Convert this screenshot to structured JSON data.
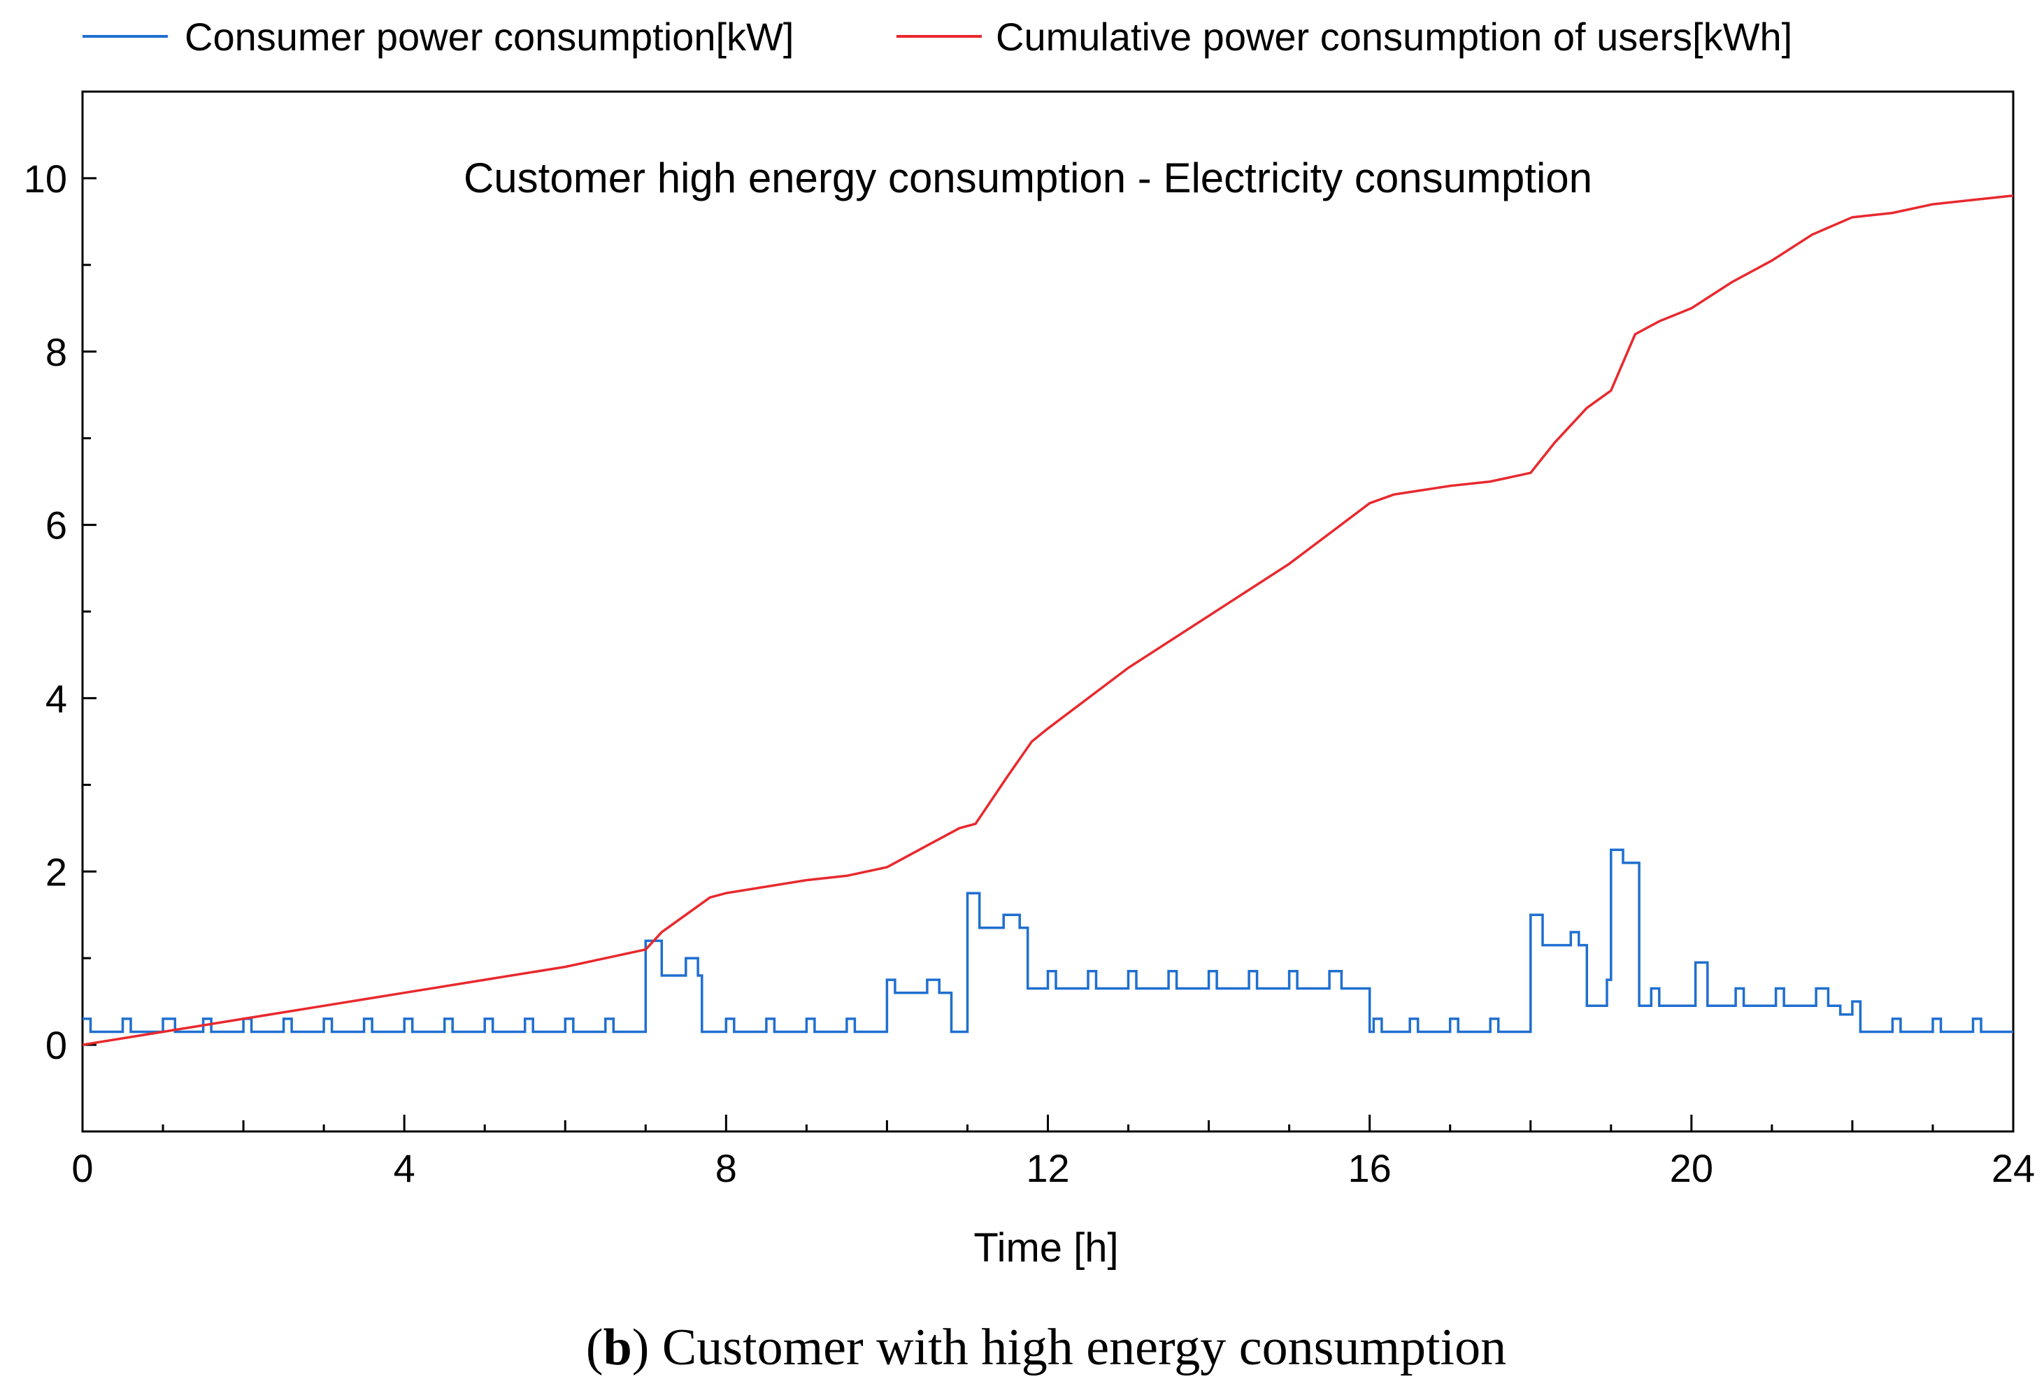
{
  "chart_data": {
    "type": "line",
    "title": "Customer high energy consumption - Electricity consumption",
    "xlabel": "Time [h]",
    "ylabel": "",
    "xlim": [
      0,
      24
    ],
    "ylim": [
      -1,
      11
    ],
    "x_ticks": [
      0,
      4,
      8,
      12,
      16,
      20,
      24
    ],
    "y_ticks": [
      0,
      2,
      4,
      6,
      8,
      10
    ],
    "x_minor_step": 1,
    "y_minor_step": 1,
    "grid": false,
    "legend_position": "top",
    "series": [
      {
        "name": "Consumer power consumption[kW]",
        "color": "#1f6fd0",
        "step": true,
        "points": [
          [
            0,
            0.3
          ],
          [
            0.1,
            0.3
          ],
          [
            0.1,
            0.15
          ],
          [
            0.5,
            0.15
          ],
          [
            0.5,
            0.3
          ],
          [
            0.6,
            0.3
          ],
          [
            0.6,
            0.15
          ],
          [
            1,
            0.15
          ],
          [
            1,
            0.3
          ],
          [
            1.15,
            0.3
          ],
          [
            1.15,
            0.15
          ],
          [
            1.5,
            0.15
          ],
          [
            1.5,
            0.3
          ],
          [
            1.6,
            0.3
          ],
          [
            1.6,
            0.15
          ],
          [
            2,
            0.15
          ],
          [
            2,
            0.3
          ],
          [
            2.1,
            0.3
          ],
          [
            2.1,
            0.15
          ],
          [
            2.5,
            0.15
          ],
          [
            2.5,
            0.3
          ],
          [
            2.6,
            0.3
          ],
          [
            2.6,
            0.15
          ],
          [
            3,
            0.15
          ],
          [
            3,
            0.3
          ],
          [
            3.1,
            0.3
          ],
          [
            3.1,
            0.15
          ],
          [
            3.5,
            0.15
          ],
          [
            3.5,
            0.3
          ],
          [
            3.6,
            0.3
          ],
          [
            3.6,
            0.15
          ],
          [
            4,
            0.15
          ],
          [
            4,
            0.3
          ],
          [
            4.1,
            0.3
          ],
          [
            4.1,
            0.15
          ],
          [
            4.5,
            0.15
          ],
          [
            4.5,
            0.3
          ],
          [
            4.6,
            0.3
          ],
          [
            4.6,
            0.15
          ],
          [
            5,
            0.15
          ],
          [
            5,
            0.3
          ],
          [
            5.1,
            0.3
          ],
          [
            5.1,
            0.15
          ],
          [
            5.5,
            0.15
          ],
          [
            5.5,
            0.3
          ],
          [
            5.6,
            0.3
          ],
          [
            5.6,
            0.15
          ],
          [
            6,
            0.15
          ],
          [
            6,
            0.3
          ],
          [
            6.1,
            0.3
          ],
          [
            6.1,
            0.15
          ],
          [
            6.5,
            0.15
          ],
          [
            6.5,
            0.3
          ],
          [
            6.6,
            0.3
          ],
          [
            6.6,
            0.15
          ],
          [
            7,
            0.15
          ],
          [
            7,
            1.2
          ],
          [
            7.2,
            1.2
          ],
          [
            7.2,
            0.8
          ],
          [
            7.5,
            0.8
          ],
          [
            7.5,
            1.0
          ],
          [
            7.65,
            1.0
          ],
          [
            7.65,
            0.8
          ],
          [
            7.7,
            0.8
          ],
          [
            7.7,
            0.15
          ],
          [
            8,
            0.15
          ],
          [
            8,
            0.3
          ],
          [
            8.1,
            0.3
          ],
          [
            8.1,
            0.15
          ],
          [
            8.5,
            0.15
          ],
          [
            8.5,
            0.3
          ],
          [
            8.6,
            0.3
          ],
          [
            8.6,
            0.15
          ],
          [
            9,
            0.15
          ],
          [
            9,
            0.3
          ],
          [
            9.1,
            0.3
          ],
          [
            9.1,
            0.15
          ],
          [
            9.5,
            0.15
          ],
          [
            9.5,
            0.3
          ],
          [
            9.6,
            0.3
          ],
          [
            9.6,
            0.15
          ],
          [
            10,
            0.15
          ],
          [
            10,
            0.75
          ],
          [
            10.1,
            0.75
          ],
          [
            10.1,
            0.6
          ],
          [
            10.5,
            0.6
          ],
          [
            10.5,
            0.75
          ],
          [
            10.65,
            0.75
          ],
          [
            10.65,
            0.6
          ],
          [
            10.8,
            0.6
          ],
          [
            10.8,
            0.15
          ],
          [
            11,
            0.15
          ],
          [
            11,
            1.75
          ],
          [
            11.15,
            1.75
          ],
          [
            11.15,
            1.35
          ],
          [
            11.45,
            1.35
          ],
          [
            11.45,
            1.5
          ],
          [
            11.65,
            1.5
          ],
          [
            11.65,
            1.35
          ],
          [
            11.75,
            1.35
          ],
          [
            11.75,
            0.65
          ],
          [
            12,
            0.65
          ],
          [
            12,
            0.85
          ],
          [
            12.1,
            0.85
          ],
          [
            12.1,
            0.65
          ],
          [
            12.5,
            0.65
          ],
          [
            12.5,
            0.85
          ],
          [
            12.6,
            0.85
          ],
          [
            12.6,
            0.65
          ],
          [
            13,
            0.65
          ],
          [
            13,
            0.85
          ],
          [
            13.1,
            0.85
          ],
          [
            13.1,
            0.65
          ],
          [
            13.5,
            0.65
          ],
          [
            13.5,
            0.85
          ],
          [
            13.6,
            0.85
          ],
          [
            13.6,
            0.65
          ],
          [
            14,
            0.65
          ],
          [
            14,
            0.85
          ],
          [
            14.1,
            0.85
          ],
          [
            14.1,
            0.65
          ],
          [
            14.5,
            0.65
          ],
          [
            14.5,
            0.85
          ],
          [
            14.6,
            0.85
          ],
          [
            14.6,
            0.65
          ],
          [
            15,
            0.65
          ],
          [
            15,
            0.85
          ],
          [
            15.1,
            0.85
          ],
          [
            15.1,
            0.65
          ],
          [
            15.5,
            0.65
          ],
          [
            15.5,
            0.85
          ],
          [
            15.65,
            0.85
          ],
          [
            15.65,
            0.65
          ],
          [
            16,
            0.65
          ],
          [
            16,
            0.15
          ],
          [
            16.05,
            0.15
          ],
          [
            16.05,
            0.3
          ],
          [
            16.15,
            0.3
          ],
          [
            16.15,
            0.15
          ],
          [
            16.5,
            0.15
          ],
          [
            16.5,
            0.3
          ],
          [
            16.6,
            0.3
          ],
          [
            16.6,
            0.15
          ],
          [
            17,
            0.15
          ],
          [
            17,
            0.3
          ],
          [
            17.1,
            0.3
          ],
          [
            17.1,
            0.15
          ],
          [
            17.5,
            0.15
          ],
          [
            17.5,
            0.3
          ],
          [
            17.6,
            0.3
          ],
          [
            17.6,
            0.15
          ],
          [
            18,
            0.15
          ],
          [
            18,
            1.5
          ],
          [
            18.15,
            1.5
          ],
          [
            18.15,
            1.15
          ],
          [
            18.5,
            1.15
          ],
          [
            18.5,
            1.3
          ],
          [
            18.6,
            1.3
          ],
          [
            18.6,
            1.15
          ],
          [
            18.7,
            1.15
          ],
          [
            18.7,
            0.45
          ],
          [
            18.95,
            0.45
          ],
          [
            18.95,
            0.75
          ],
          [
            19,
            0.75
          ],
          [
            19,
            2.25
          ],
          [
            19.15,
            2.25
          ],
          [
            19.15,
            2.1
          ],
          [
            19.35,
            2.1
          ],
          [
            19.35,
            0.45
          ],
          [
            19.5,
            0.45
          ],
          [
            19.5,
            0.65
          ],
          [
            19.6,
            0.65
          ],
          [
            19.6,
            0.45
          ],
          [
            20.05,
            0.45
          ],
          [
            20.05,
            0.95
          ],
          [
            20.2,
            0.95
          ],
          [
            20.2,
            0.45
          ],
          [
            20.55,
            0.45
          ],
          [
            20.55,
            0.65
          ],
          [
            20.65,
            0.65
          ],
          [
            20.65,
            0.45
          ],
          [
            21.05,
            0.45
          ],
          [
            21.05,
            0.65
          ],
          [
            21.15,
            0.65
          ],
          [
            21.15,
            0.45
          ],
          [
            21.55,
            0.45
          ],
          [
            21.55,
            0.65
          ],
          [
            21.7,
            0.65
          ],
          [
            21.7,
            0.45
          ],
          [
            21.85,
            0.45
          ],
          [
            21.85,
            0.35
          ],
          [
            22,
            0.35
          ],
          [
            22,
            0.5
          ],
          [
            22.1,
            0.5
          ],
          [
            22.1,
            0.15
          ],
          [
            22.5,
            0.15
          ],
          [
            22.5,
            0.3
          ],
          [
            22.6,
            0.3
          ],
          [
            22.6,
            0.15
          ],
          [
            23,
            0.15
          ],
          [
            23,
            0.3
          ],
          [
            23.1,
            0.3
          ],
          [
            23.1,
            0.15
          ],
          [
            23.5,
            0.15
          ],
          [
            23.5,
            0.3
          ],
          [
            23.6,
            0.3
          ],
          [
            23.6,
            0.15
          ],
          [
            24,
            0.15
          ]
        ]
      },
      {
        "name": "Cumulative power consumption of users[kWh]",
        "color": "#e8292e",
        "step": false,
        "points": [
          [
            0,
            0
          ],
          [
            1,
            0.15
          ],
          [
            2,
            0.3
          ],
          [
            3,
            0.45
          ],
          [
            4,
            0.6
          ],
          [
            5,
            0.75
          ],
          [
            6,
            0.9
          ],
          [
            7,
            1.1
          ],
          [
            7.2,
            1.3
          ],
          [
            7.8,
            1.7
          ],
          [
            8,
            1.75
          ],
          [
            9,
            1.9
          ],
          [
            9.5,
            1.95
          ],
          [
            10,
            2.05
          ],
          [
            10.5,
            2.3
          ],
          [
            10.9,
            2.5
          ],
          [
            11.1,
            2.55
          ],
          [
            11.5,
            3.1
          ],
          [
            11.8,
            3.5
          ],
          [
            12,
            3.65
          ],
          [
            13,
            4.35
          ],
          [
            14,
            4.95
          ],
          [
            15,
            5.55
          ],
          [
            15.5,
            5.9
          ],
          [
            16,
            6.25
          ],
          [
            16.3,
            6.35
          ],
          [
            17,
            6.45
          ],
          [
            17.5,
            6.5
          ],
          [
            18,
            6.6
          ],
          [
            18.3,
            6.95
          ],
          [
            18.7,
            7.35
          ],
          [
            19,
            7.55
          ],
          [
            19.3,
            8.2
          ],
          [
            19.6,
            8.35
          ],
          [
            20,
            8.5
          ],
          [
            20.5,
            8.8
          ],
          [
            21,
            9.05
          ],
          [
            21.5,
            9.35
          ],
          [
            22,
            9.55
          ],
          [
            22.5,
            9.6
          ],
          [
            23,
            9.7
          ],
          [
            23.5,
            9.75
          ],
          [
            24,
            9.8
          ]
        ]
      }
    ]
  },
  "caption": {
    "open_paren": "(",
    "letter": "b",
    "rest": ") Customer with high energy consumption"
  }
}
